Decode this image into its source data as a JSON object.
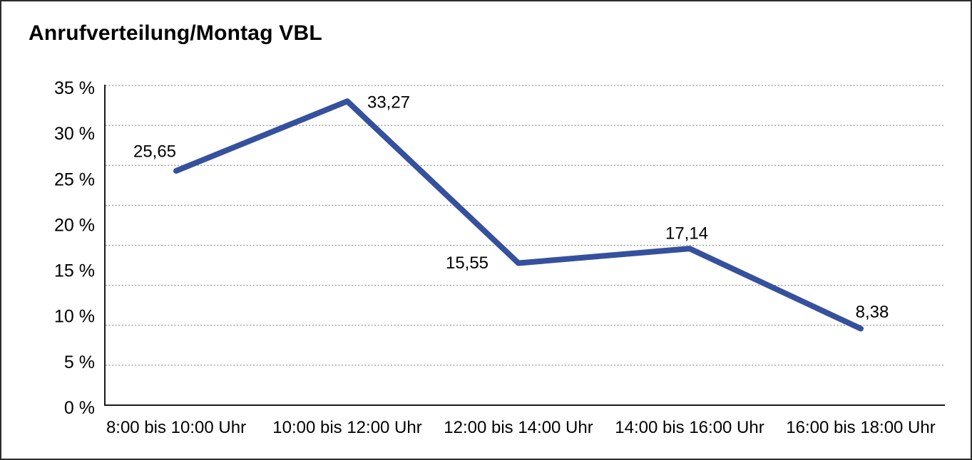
{
  "page": {
    "title": "Anrufverteilung/Montag VBL"
  },
  "chart_data": {
    "type": "line",
    "title": "Anrufverteilung/Montag VBL",
    "categories": [
      "8:00 bis 10:00 Uhr",
      "10:00 bis 12:00 Uhr",
      "12:00 bis 14:00 Uhr",
      "14:00 bis 16:00 Uhr",
      "16:00 bis 18:00 Uhr"
    ],
    "values": [
      25.65,
      33.27,
      15.55,
      17.14,
      8.38
    ],
    "value_labels": [
      "25,65",
      "33,27",
      "15,55",
      "17,14",
      "8,38"
    ],
    "y_tick_values": [
      35,
      30,
      25,
      20,
      15,
      10,
      5,
      0
    ],
    "y_tick_labels": [
      "35 %",
      "30 %",
      "25 %",
      "20 %",
      "15 %",
      "10 %",
      "5 %",
      "0 %"
    ],
    "ylim": [
      0,
      35
    ],
    "xlabel": "",
    "ylabel": "",
    "grid": "horizontal-dotted",
    "legend_position": "none",
    "colors": {
      "line": "#35519E",
      "grid": "#8a8a8a",
      "axis": "#1a1a1a",
      "text": "#000000",
      "background": "#ffffff"
    }
  }
}
